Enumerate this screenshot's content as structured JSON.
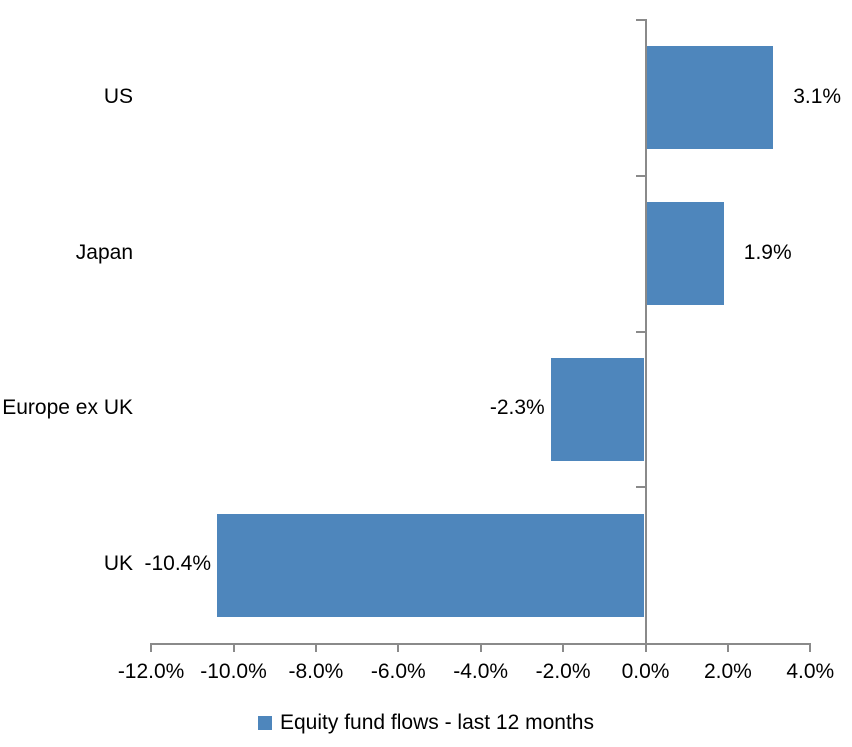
{
  "chart_data": {
    "type": "bar",
    "orientation": "horizontal",
    "title": "",
    "categories": [
      "US",
      "Japan",
      "Europe ex UK",
      "UK"
    ],
    "series": [
      {
        "name": "Equity fund flows - last 12 months",
        "values": [
          3.1,
          1.9,
          -2.3,
          -10.4
        ],
        "value_labels": [
          "3.1%",
          "1.9%",
          "-2.3%",
          "-10.4%"
        ]
      }
    ],
    "x_ticks": [
      -12,
      -10,
      -8,
      -6,
      -4,
      -2,
      0,
      2,
      4
    ],
    "x_tick_labels": [
      "-12.0%",
      "-10.0%",
      "-8.0%",
      "-6.0%",
      "-4.0%",
      "-2.0%",
      "0.0%",
      "2.0%",
      "4.0%"
    ],
    "xlim": [
      -12,
      4
    ],
    "xlabel": "",
    "ylabel": "",
    "grid": false,
    "legend": "Equity fund flows - last 12 months",
    "legend_position": "bottom",
    "colors": {
      "bar": "#4E86BC",
      "axis": "#8A8A8A",
      "text": "#000000",
      "background": "#FFFFFF"
    }
  }
}
